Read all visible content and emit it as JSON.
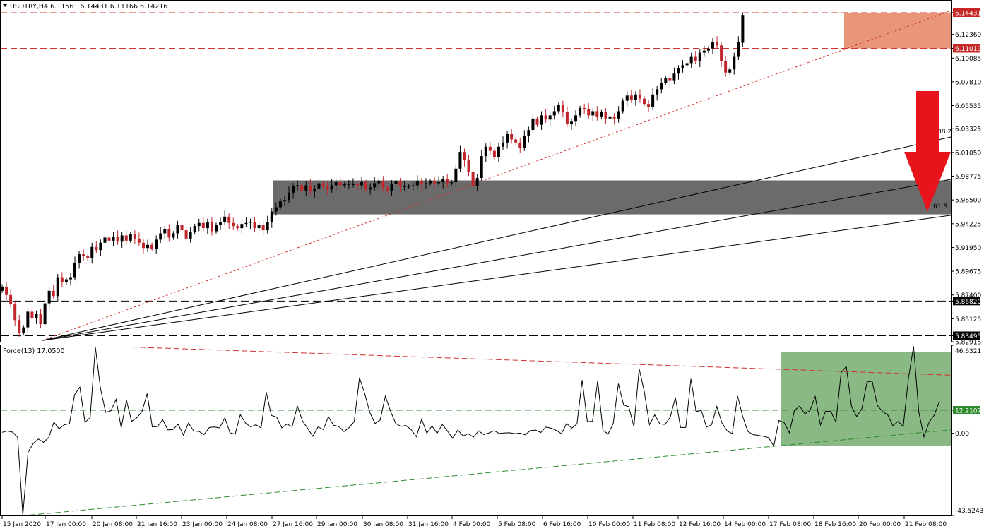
{
  "window": {
    "symbol_header": "USDTRY,H4  6.11561 6.14431 6.11166 6.14216",
    "indicator_header": "Force(13) 17.0500"
  },
  "colors": {
    "bull_candle": "#000000",
    "bear_candle": "#c0272d",
    "resistance_zone": "#e8957a",
    "support_zone": "#6b6b6b",
    "indicator_zone": "#8ab985",
    "down_arrow": "#e8141b",
    "price_tag_red": "#c62828",
    "price_tag_black": "#000000",
    "indicator_line": "#000000",
    "red_dashed": "#d0312d",
    "green_dashed": "#2e8b2e"
  },
  "chart_data": [
    {
      "type": "candlestick",
      "title": "USDTRY,H4",
      "ohlc_last": {
        "open": 6.11561,
        "high": 6.14431,
        "low": 6.11166,
        "close": 6.14216
      },
      "x_tick_labels": [
        "15 Jan 2020",
        "17 Jan 00:00",
        "20 Jan 08:00",
        "21 Jan 16:00",
        "23 Jan 00:00",
        "24 Jan 08:00",
        "27 Jan 16:00",
        "29 Jan 00:00",
        "30 Jan 08:00",
        "31 Jan 16:00",
        "4 Feb 00:00",
        "5 Feb 08:00",
        "6 Feb 16:00",
        "10 Feb 00:00",
        "11 Feb 08:00",
        "12 Feb 16:00",
        "14 Feb 00:00",
        "17 Feb 08:00",
        "18 Feb 16:00",
        "20 Feb 00:00",
        "21 Feb 08:00"
      ],
      "y_tick_labels": [
        "6.14431",
        "6.12360",
        "6.11019",
        "6.10085",
        "6.07810",
        "6.05535",
        "6.03325",
        "6.01050",
        "5.98775",
        "5.96500",
        "5.94225",
        "5.91950",
        "5.89675",
        "5.87400",
        "5.86820",
        "5.85125",
        "5.83495",
        "5.82915"
      ],
      "ylim": [
        5.8292,
        6.1558
      ],
      "horizontal_levels": [
        6.14431,
        6.11019,
        5.8682,
        5.83495
      ],
      "resistance_zone": [
        6.11019,
        6.14431
      ],
      "support_zone": [
        5.9512,
        5.9837
      ],
      "fibonacci_fan_labels": [
        "38.2",
        "61.8"
      ],
      "annotation": "red down arrow pointing to support zone",
      "closes": [
        5.882,
        5.874,
        5.865,
        5.85,
        5.838,
        5.843,
        5.858,
        5.852,
        5.856,
        5.846,
        5.866,
        5.878,
        5.873,
        5.891,
        5.886,
        5.889,
        5.891,
        5.905,
        5.913,
        5.911,
        5.909,
        5.92,
        5.917,
        5.924,
        5.929,
        5.926,
        5.93,
        5.925,
        5.931,
        5.926,
        5.932,
        5.928,
        5.924,
        5.919,
        5.922,
        5.918,
        5.927,
        5.933,
        5.937,
        5.929,
        5.933,
        5.941,
        5.936,
        5.928,
        5.934,
        5.94,
        5.943,
        5.938,
        5.944,
        5.935,
        5.941,
        5.944,
        5.949,
        5.943,
        5.94,
        5.938,
        5.942,
        5.943,
        5.944,
        5.938,
        5.941,
        5.936,
        5.944,
        5.954,
        5.958,
        5.964,
        5.965,
        5.972,
        5.978,
        5.979,
        5.974,
        5.979,
        5.973,
        5.976,
        5.981,
        5.978,
        5.975,
        5.979,
        5.982,
        5.979,
        5.98,
        5.98,
        5.98,
        5.979,
        5.982,
        5.975,
        5.977,
        5.981,
        5.983,
        5.977,
        5.974,
        5.98,
        5.983,
        5.978,
        5.978,
        5.978,
        5.979,
        5.983,
        5.98,
        5.981,
        5.983,
        5.981,
        5.982,
        5.985,
        5.981,
        5.982,
        5.995,
        6.011,
        6.003,
        5.992,
        5.978,
        5.986,
        6.007,
        6.016,
        6.012,
        6.006,
        6.016,
        6.02,
        6.028,
        6.023,
        6.02,
        6.015,
        6.026,
        6.032,
        6.043,
        6.037,
        6.046,
        6.042,
        6.046,
        6.05,
        6.056,
        6.049,
        6.038,
        6.04,
        6.046,
        6.053,
        6.052,
        6.046,
        6.05,
        6.045,
        6.049,
        6.043,
        6.045,
        6.043,
        6.05,
        6.06,
        6.065,
        6.061,
        6.066,
        6.062,
        6.057,
        6.054,
        6.066,
        6.071,
        6.077,
        6.082,
        6.079,
        6.086,
        6.091,
        6.094,
        6.096,
        6.102,
        6.098,
        6.106,
        6.108,
        6.11,
        6.116,
        6.113,
        6.098,
        6.087,
        6.09,
        6.102,
        6.116,
        6.14216
      ]
    },
    {
      "type": "line",
      "title": "Force(13) 17.0500",
      "ylim": [
        -43.5243,
        46.6321
      ],
      "y_tick_labels": [
        "46.6321",
        "12.2107",
        "0.00",
        "-43.5243"
      ],
      "horizontal_levels": [
        12.2107
      ],
      "values": [
        0.5,
        1.2,
        0.6,
        -2.1,
        -43.5,
        -10.0,
        -5.4,
        -3.0,
        -4.8,
        -2.2,
        5.9,
        2.4,
        4.5,
        5.1,
        20.5,
        24.5,
        5.8,
        8.3,
        45.7,
        23.6,
        11.1,
        11.9,
        18.0,
        2.9,
        17.5,
        6.3,
        8.2,
        11.5,
        21.0,
        3.4,
        3.6,
        7.2,
        1.8,
        2.0,
        4.8,
        -1.0,
        5.4,
        1.2,
        1.0,
        -0.7,
        3.1,
        3.3,
        2.9,
        8.2,
        0.3,
        -0.5,
        9.9,
        5.4,
        3.4,
        4.5,
        2.9,
        21.8,
        9.5,
        8.6,
        2.9,
        4.9,
        3.5,
        14.5,
        6.5,
        2.6,
        -1.6,
        3.4,
        2.0,
        8.8,
        4.2,
        3.6,
        0.9,
        3.0,
        6.2,
        29.5,
        21.2,
        11.1,
        5.2,
        7.1,
        19.7,
        11.6,
        5.2,
        3.7,
        4.1,
        1.9,
        -1.8,
        7.5,
        0.1,
        3.9,
        0.0,
        4.7,
        1.1,
        -2.6,
        1.7,
        -1.4,
        -0.2,
        -2.0,
        1.3,
        -0.7,
        0.2,
        1.4,
        -0.1,
        0.2,
        0.3,
        -0.2,
        0.1,
        -0.8,
        1.4,
        1.7,
        0.4,
        3.3,
        2.7,
        1.5,
        -0.2,
        5.2,
        2.7,
        5.0,
        28.2,
        6.1,
        6.4,
        27.9,
        1.6,
        -0.4,
        5.2,
        26.3,
        15.0,
        14.1,
        3.5,
        34.3,
        22.1,
        4.5,
        9.8,
        5.0,
        4.7,
        8.5,
        19.0,
        3.1,
        3.1,
        28.8,
        11.5,
        12.1,
        3.3,
        4.6,
        14.2,
        5.5,
        1.2,
        -0.2,
        19.8,
        8.9,
        1.0,
        -0.7,
        -1.1,
        -1.6,
        -2.3,
        -6.7,
        6.8,
        5.6,
        0.3,
        12.1,
        14.4,
        10.3,
        12.1,
        19.5,
        4.4,
        11.6,
        11.7,
        5.9,
        32.1,
        35.5,
        14.2,
        8.9,
        13.0,
        27.2,
        27.6,
        14.8,
        11.5,
        9.8,
        4.0,
        6.3,
        3.6,
        29.0,
        46.1,
        11.3,
        -1.9,
        5.9,
        9.7,
        17.05
      ]
    }
  ],
  "time_axis": {
    "labels": [
      "15 Jan 2020",
      "17 Jan 00:00",
      "20 Jan 08:00",
      "21 Jan 16:00",
      "23 Jan 00:00",
      "24 Jan 08:00",
      "27 Jan 16:00",
      "29 Jan 00:00",
      "30 Jan 08:00",
      "31 Jan 16:00",
      "4 Feb 00:00",
      "5 Feb 08:00",
      "6 Feb 16:00",
      "10 Feb 00:00",
      "11 Feb 08:00",
      "12 Feb 16:00",
      "14 Feb 00:00",
      "17 Feb 08:00",
      "18 Feb 16:00",
      "20 Feb 00:00",
      "21 Feb 08:00"
    ]
  },
  "price_axis": {
    "ticks": [
      {
        "label": "6.14431",
        "kind": "tag-red"
      },
      {
        "label": "6.12360",
        "kind": "plain"
      },
      {
        "label": "6.11019",
        "kind": "tag-red"
      },
      {
        "label": "6.10085",
        "kind": "plain"
      },
      {
        "label": "6.07810",
        "kind": "plain"
      },
      {
        "label": "6.05535",
        "kind": "plain"
      },
      {
        "label": "6.03325",
        "kind": "plain"
      },
      {
        "label": "6.01050",
        "kind": "plain"
      },
      {
        "label": "5.98775",
        "kind": "plain"
      },
      {
        "label": "5.96500",
        "kind": "plain"
      },
      {
        "label": "5.94225",
        "kind": "plain"
      },
      {
        "label": "5.91950",
        "kind": "plain"
      },
      {
        "label": "5.89675",
        "kind": "plain"
      },
      {
        "label": "5.87400",
        "kind": "plain"
      },
      {
        "label": "5.86820",
        "kind": "tag-black"
      },
      {
        "label": "5.85125",
        "kind": "plain"
      },
      {
        "label": "5.83495",
        "kind": "tag-black"
      },
      {
        "label": "5.82915",
        "kind": "plain"
      }
    ]
  },
  "indicator_axis": {
    "ticks": [
      {
        "label": "46.6321",
        "kind": "plain"
      },
      {
        "label": "12.2107",
        "kind": "tag-green"
      },
      {
        "label": "0.00",
        "kind": "plain"
      },
      {
        "label": "-43.5243",
        "kind": "plain"
      }
    ]
  }
}
